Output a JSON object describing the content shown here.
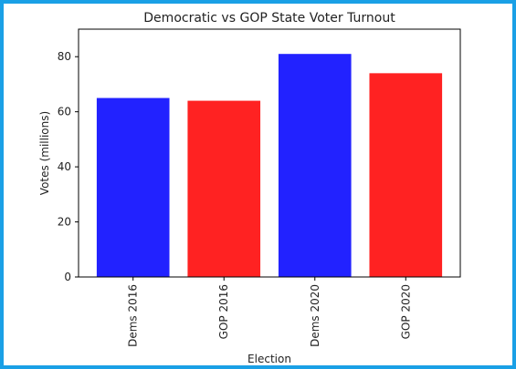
{
  "chart_data": {
    "type": "bar",
    "title": "Democratic vs GOP State Voter Turnout",
    "xlabel": "Election",
    "ylabel": "Votes (millions)",
    "categories": [
      "Dems 2016",
      "GOP 2016",
      "Dems 2020",
      "GOP 2020"
    ],
    "values": [
      65,
      64,
      81,
      74
    ],
    "colors": [
      "#2222ff",
      "#ff2222",
      "#2222ff",
      "#ff2222"
    ],
    "ylim": [
      0,
      90
    ],
    "yticks": [
      0,
      20,
      40,
      60,
      80
    ],
    "grid": false,
    "legend": "none"
  },
  "frame": {
    "border_color": "#1aa0e6"
  }
}
